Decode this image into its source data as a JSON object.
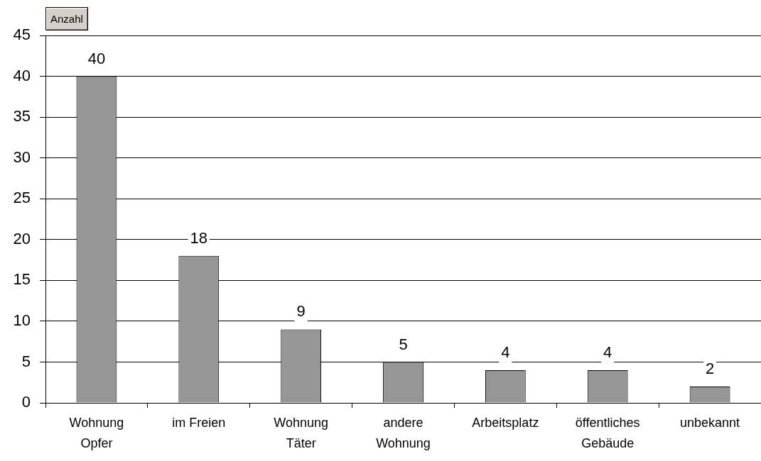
{
  "chart_data": {
    "type": "bar",
    "ylabel": "Anzahl",
    "categories": [
      "Wohnung Opfer",
      "im Freien",
      "Wohnung Täter",
      "andere Wohnung",
      "Arbeitsplatz",
      "öffentliches Gebäude",
      "unbekannt"
    ],
    "values": [
      40,
      18,
      9,
      5,
      4,
      4,
      2
    ],
    "color": "#969696",
    "ylim": [
      0,
      45
    ],
    "yticks": [
      0,
      5,
      10,
      15,
      20,
      25,
      30,
      35,
      40,
      45
    ],
    "grid": "y",
    "data_labels": true
  }
}
